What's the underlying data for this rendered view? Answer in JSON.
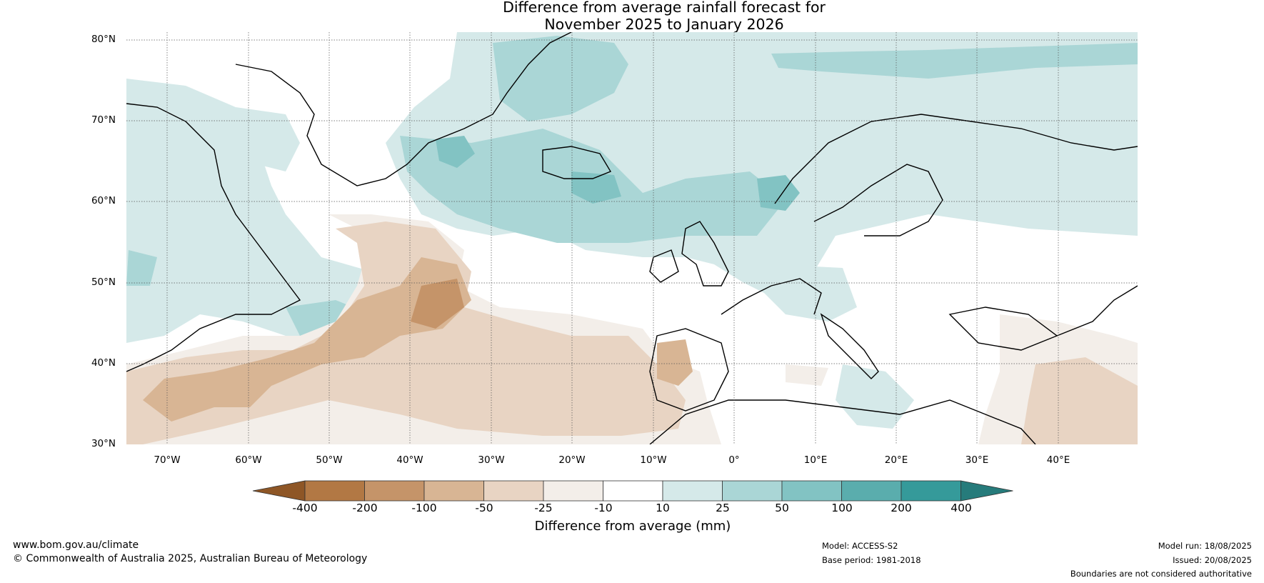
{
  "title": {
    "line1": "Difference from average rainfall forecast for",
    "line2": "November 2025 to January 2026"
  },
  "map": {
    "lat_labels": [
      "80°N",
      "70°N",
      "60°N",
      "50°N",
      "40°N",
      "30°N"
    ],
    "lon_labels": [
      "70°W",
      "60°W",
      "50°W",
      "40°W",
      "30°W",
      "20°W",
      "10°W",
      "0°",
      "10°E",
      "20°E",
      "30°E",
      "40°E"
    ],
    "grid": true
  },
  "colorbar": {
    "title": "Difference from average (mm)",
    "tick_labels": [
      "-400",
      "-200",
      "-100",
      "-50",
      "-25",
      "-10",
      "10",
      "25",
      "50",
      "100",
      "200",
      "400"
    ],
    "colors": [
      "#8e5626",
      "#b27844",
      "#c59469",
      "#d8b594",
      "#e8d4c3",
      "#f3eee9",
      "#ffffff",
      "#d5e9e9",
      "#aad6d6",
      "#82c3c3",
      "#5aadad",
      "#359a9a",
      "#267b7b"
    ],
    "extend": "both"
  },
  "footer": {
    "website": "www.bom.gov.au/climate",
    "copyright": "© Commonwealth of Australia 2025, Australian Bureau of Meteorology",
    "model": "Model: ACCESS-S2",
    "base_period": "Base period: 1981-2018",
    "model_run": "Model run: 18/08/2025",
    "issued": "Issued: 20/08/2025",
    "boundaries": "Boundaries are not considered authoritative"
  }
}
